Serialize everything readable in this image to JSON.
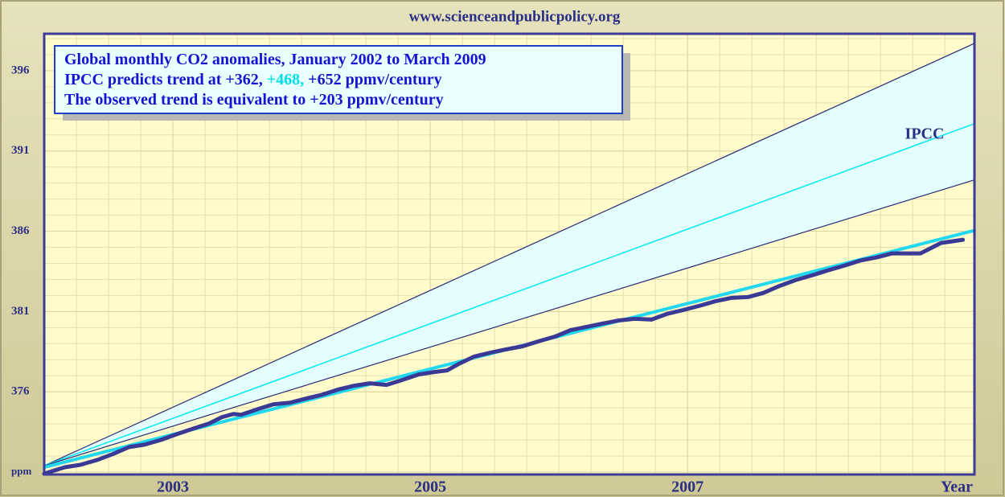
{
  "header": "www.scienceandpublicpolicy.org",
  "chart_data": {
    "type": "line",
    "text_box": [
      [
        "Global monthly CO2 anomalies, January 2002 to March 2009"
      ],
      [
        "IPCC predicts trend at +362, ",
        "+468,",
        " +652 ppmv/century"
      ],
      [
        "The observed trend is equivalent to +203 ppmv/century"
      ]
    ],
    "text_box_colors": [
      [
        "#1414d2"
      ],
      [
        "#1414d2",
        "#00e0e8",
        "#1414d2"
      ],
      [
        "#1414d2"
      ]
    ],
    "annotation": "IPCC",
    "xlabel": "Year",
    "xlim": [
      2002,
      2009.23
    ],
    "xticks": [
      2003,
      2005,
      2007
    ],
    "ylim": [
      370.85,
      398.3
    ],
    "yticks": [
      {
        "value": 371,
        "label": "ppm"
      },
      376,
      381,
      386,
      391,
      396
    ],
    "grid": true,
    "band": {
      "between": [
        0,
        2
      ],
      "color": "#e4fdff"
    },
    "series": [
      {
        "color": "#2a2a78",
        "width": 1.2,
        "x": [
          2002,
          2009.23
        ],
        "values": [
          371.4,
          397.7
        ]
      },
      {
        "color": "#10e8f0",
        "width": 1.6,
        "x": [
          2002,
          2009.23
        ],
        "values": [
          371.4,
          392.7
        ]
      },
      {
        "color": "#2a2a78",
        "width": 1.2,
        "x": [
          2002,
          2009.23
        ],
        "values": [
          371.4,
          389.2
        ]
      },
      {
        "color": "#20d8f0",
        "width": 4,
        "x": [
          2002,
          2009.23
        ],
        "values": [
          371.3,
          386.05
        ]
      },
      {
        "color": "#3a3a96",
        "width": 5,
        "x": [
          2002.0,
          2002.16,
          2002.28,
          2002.41,
          2002.53,
          2002.66,
          2002.78,
          2002.91,
          2003.03,
          2003.16,
          2003.28,
          2003.38,
          2003.47,
          2003.53,
          2003.66,
          2003.78,
          2003.91,
          2004.03,
          2004.16,
          2004.28,
          2004.41,
          2004.53,
          2004.66,
          2004.78,
          2004.91,
          2005.03,
          2005.13,
          2005.22,
          2005.34,
          2005.47,
          2005.59,
          2005.72,
          2005.84,
          2005.97,
          2006.09,
          2006.22,
          2006.34,
          2006.47,
          2006.59,
          2006.72,
          2006.84,
          2006.97,
          2007.09,
          2007.22,
          2007.34,
          2007.47,
          2007.59,
          2007.72,
          2007.84,
          2007.97,
          2008.09,
          2008.22,
          2008.34,
          2008.47,
          2008.59,
          2008.81,
          2008.97,
          2009.14
        ],
        "values": [
          370.9,
          371.3,
          371.45,
          371.75,
          372.11,
          372.56,
          372.71,
          373.01,
          373.36,
          373.71,
          374.02,
          374.42,
          374.62,
          374.57,
          374.92,
          375.22,
          375.32,
          375.57,
          375.82,
          376.13,
          376.38,
          376.53,
          376.43,
          376.73,
          377.08,
          377.23,
          377.33,
          377.73,
          378.19,
          378.44,
          378.64,
          378.84,
          379.14,
          379.44,
          379.84,
          380.05,
          380.25,
          380.45,
          380.55,
          380.5,
          380.85,
          381.1,
          381.35,
          381.65,
          381.85,
          381.9,
          382.16,
          382.61,
          382.96,
          383.26,
          383.56,
          383.86,
          384.17,
          384.37,
          384.62,
          384.62,
          385.27,
          385.47
        ]
      }
    ]
  }
}
